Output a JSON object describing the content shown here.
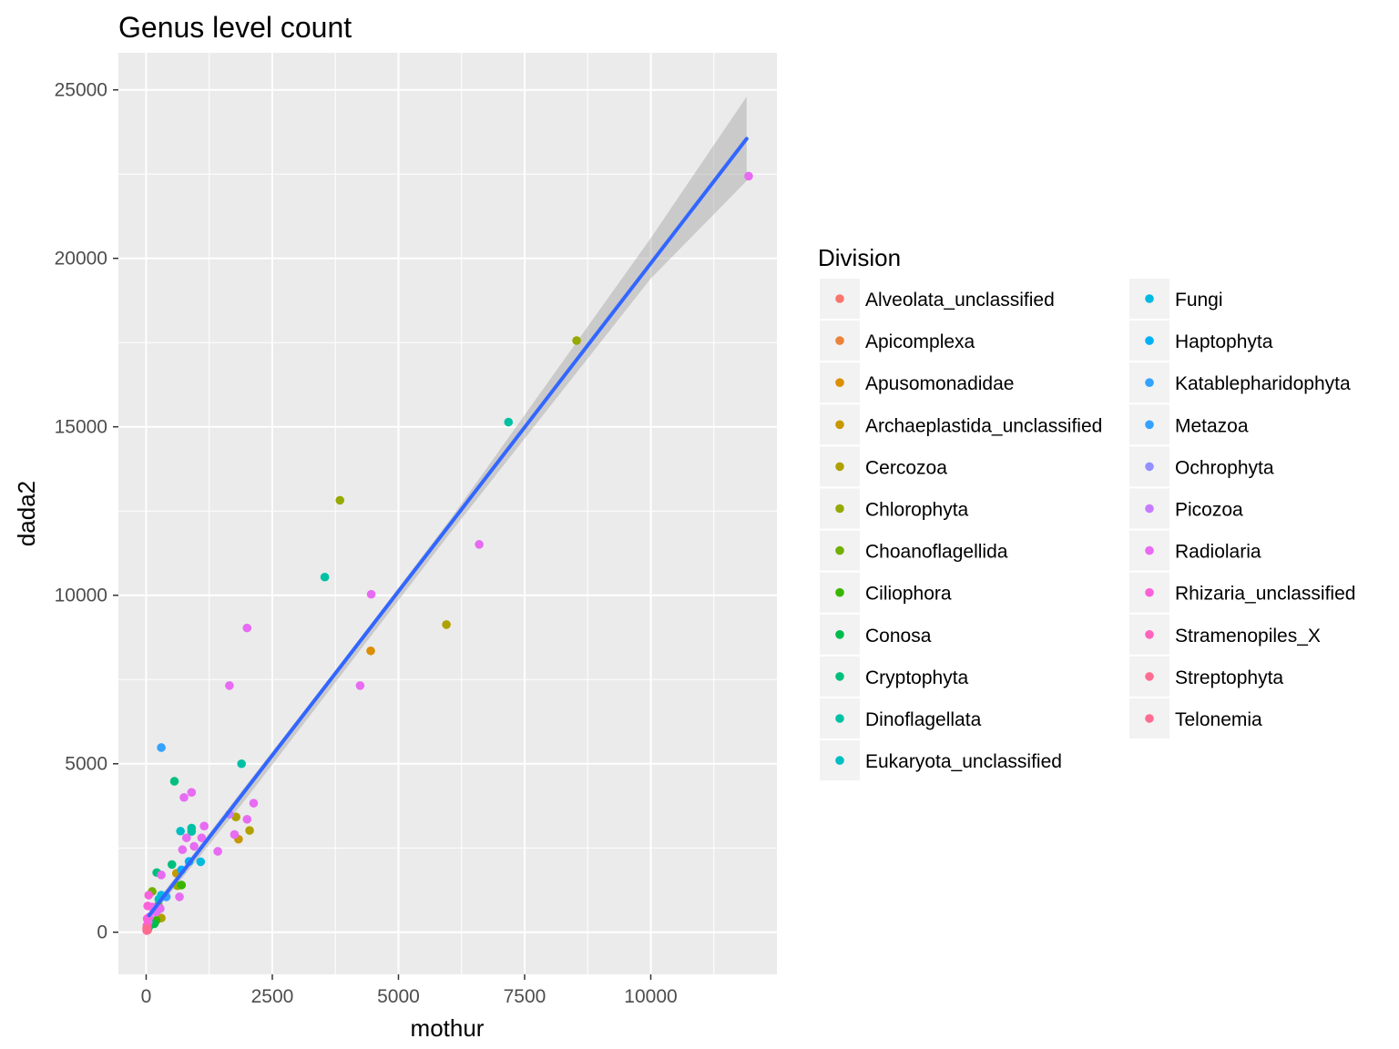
{
  "chart_data": {
    "type": "scatter",
    "title": "Genus level count",
    "xlabel": "mothur",
    "ylabel": "dada2",
    "xlim": [
      -550,
      12500
    ],
    "ylim": [
      -1250,
      26100
    ],
    "x_ticks": [
      0,
      2500,
      5000,
      7500,
      10000
    ],
    "y_ticks": [
      0,
      5000,
      10000,
      15000,
      20000,
      25000
    ],
    "grid": true,
    "legend": {
      "title": "Division",
      "placement": "right",
      "columns": 2
    },
    "series": [
      {
        "name": "Alveolata_unclassified",
        "color": "#F8766D",
        "points": [
          [
            10,
            120
          ],
          [
            30,
            60
          ]
        ]
      },
      {
        "name": "Apicomplexa",
        "color": "#EC8239",
        "points": [
          [
            40,
            200
          ]
        ]
      },
      {
        "name": "Apusomonadidae",
        "color": "#DB8E00",
        "points": [
          [
            4450,
            8350
          ],
          [
            15,
            80
          ]
        ]
      },
      {
        "name": "Archaeplastida_unclassified",
        "color": "#C79800",
        "points": [
          [
            1830,
            2760
          ],
          [
            600,
            1750
          ]
        ]
      },
      {
        "name": "Cercozoa",
        "color": "#AFA100",
        "points": [
          [
            5950,
            9130
          ],
          [
            2050,
            3020
          ],
          [
            1780,
            3420
          ],
          [
            300,
            420
          ]
        ]
      },
      {
        "name": "Chlorophyta",
        "color": "#96A900",
        "points": [
          [
            8530,
            17560
          ],
          [
            3840,
            12820
          ],
          [
            620,
            1380
          ]
        ]
      },
      {
        "name": "Choanoflagellida",
        "color": "#72B000",
        "points": [
          [
            120,
            1210
          ],
          [
            240,
            800
          ]
        ]
      },
      {
        "name": "Ciliophora",
        "color": "#39B600",
        "points": [
          [
            700,
            1400
          ],
          [
            200,
            350
          ]
        ]
      },
      {
        "name": "Conosa",
        "color": "#00BB4E",
        "points": [
          [
            160,
            250
          ],
          [
            50,
            150
          ]
        ]
      },
      {
        "name": "Cryptophyta",
        "color": "#00BF7D",
        "points": [
          [
            510,
            2010
          ],
          [
            560,
            4480
          ],
          [
            210,
            1770
          ]
        ]
      },
      {
        "name": "Dinoflagellata",
        "color": "#00C1A3",
        "points": [
          [
            7180,
            15140
          ],
          [
            3540,
            10540
          ],
          [
            1890,
            5000
          ],
          [
            900,
            3090
          ],
          [
            900,
            2990
          ]
        ]
      },
      {
        "name": "Eukaryota_unclassified",
        "color": "#00BFC4",
        "points": [
          [
            680,
            3000
          ],
          [
            250,
            980
          ]
        ]
      },
      {
        "name": "Fungi",
        "color": "#00BAE0",
        "points": [
          [
            1080,
            2090
          ],
          [
            300,
            1100
          ]
        ]
      },
      {
        "name": "Haptophyta",
        "color": "#00B0F6",
        "points": [
          [
            850,
            2100
          ],
          [
            700,
            1850
          ]
        ]
      },
      {
        "name": "Katablepharidophyta",
        "color": "#35A2FF",
        "points": [
          [
            400,
            1050
          ]
        ]
      },
      {
        "name": "Metazoa",
        "color": "#35A2FF",
        "points": [
          [
            300,
            5480
          ]
        ]
      },
      {
        "name": "Ochrophyta",
        "color": "#9590FF",
        "points": [
          [
            150,
            700
          ]
        ]
      },
      {
        "name": "Picozoa",
        "color": "#C77CFF",
        "points": [
          [
            1650,
            3500
          ]
        ]
      },
      {
        "name": "Radiolaria",
        "color": "#E76BF3",
        "points": [
          [
            11940,
            22440
          ],
          [
            6600,
            11510
          ],
          [
            4460,
            10030
          ],
          [
            2000,
            9030
          ],
          [
            1650,
            7320
          ],
          [
            4240,
            7320
          ],
          [
            900,
            4150
          ],
          [
            750,
            4000
          ],
          [
            2130,
            3830
          ],
          [
            1150,
            3150
          ],
          [
            1750,
            2900
          ],
          [
            2000,
            3350
          ],
          [
            800,
            2800
          ],
          [
            1100,
            2800
          ],
          [
            950,
            2550
          ],
          [
            720,
            2450
          ],
          [
            1420,
            2400
          ],
          [
            660,
            1050
          ],
          [
            300,
            1700
          ],
          [
            280,
            700
          ],
          [
            200,
            600
          ],
          [
            120,
            750
          ],
          [
            60,
            450
          ],
          [
            40,
            300
          ]
        ]
      },
      {
        "name": "Rhizaria_unclassified",
        "color": "#FA62DB",
        "points": [
          [
            50,
            1100
          ],
          [
            30,
            780
          ],
          [
            20,
            400
          ],
          [
            15,
            200
          ]
        ]
      },
      {
        "name": "Stramenopiles_X",
        "color": "#FF62BC",
        "points": [
          [
            25,
            150
          ],
          [
            10,
            50
          ]
        ]
      },
      {
        "name": "Streptophyta",
        "color": "#FF6C91",
        "points": [
          [
            20,
            100
          ]
        ]
      },
      {
        "name": "Telonemia",
        "color": "#FF6C91",
        "points": [
          [
            15,
            60
          ]
        ]
      }
    ],
    "trend": {
      "type": "linear",
      "color": "#3366FF",
      "ribbon_color": "#999999",
      "points": [
        [
          60,
          500
        ],
        [
          11900,
          23550
        ]
      ],
      "band": [
        [
          60,
          380,
          620
        ],
        [
          2000,
          4000,
          4400
        ],
        [
          4000,
          7900,
          8250
        ],
        [
          6000,
          11800,
          12200
        ],
        [
          8000,
          15600,
          16400
        ],
        [
          10000,
          19400,
          20600
        ],
        [
          11900,
          22300,
          24800
        ]
      ]
    }
  }
}
